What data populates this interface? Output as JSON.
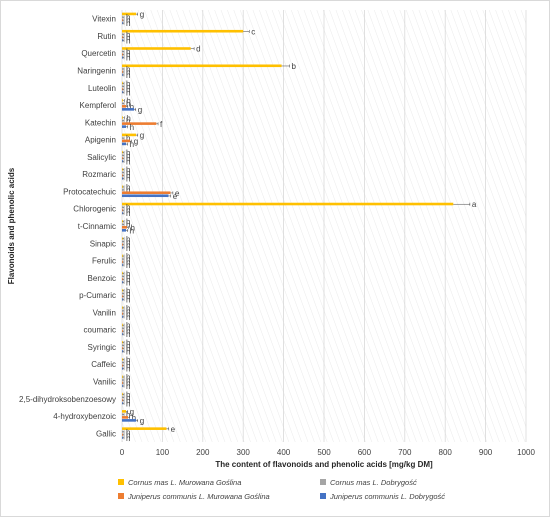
{
  "chart_data": {
    "type": "bar",
    "orientation": "horizontal",
    "xlabel": "The content of flavonoids and phenolic acids [mg/kg DM]",
    "ylabel": "Flavonoids and phenolic acids",
    "xlim": [
      0,
      1000
    ],
    "xticks": [
      "0",
      "100",
      "200",
      "300",
      "400",
      "500",
      "600",
      "700",
      "800",
      "900",
      "1000"
    ],
    "grid": "vertical",
    "legend_position": "bottom",
    "categories": [
      "Vitexin",
      "Rutin",
      "Quercetin",
      "Naringenin",
      "Luteolin",
      "Kempferol",
      "Katechin",
      "Apigenin",
      "Salicylic",
      "Rozmaric",
      "Protocatechuic",
      "Chlorogenic",
      "t-Cinnamic",
      "Sinapic",
      "Ferulic",
      "Benzoic",
      "p-Cumaric",
      "Vanilin",
      "coumaric",
      "Syringic",
      "Caffeic",
      "Vanilic",
      "2,5-dihydroksobenzoesowy",
      "4-hydroxybenzoic",
      "Gallic"
    ],
    "series": [
      {
        "name": "Cornus mas L. Murowana Goślina",
        "color": "#ffc000",
        "values": [
          35,
          300,
          170,
          395,
          1,
          2,
          2,
          35,
          1,
          1,
          1,
          820,
          1,
          1,
          1,
          1,
          1,
          1,
          1,
          1,
          1,
          1,
          1,
          10,
          110
        ],
        "letters": [
          "g",
          "c",
          "d",
          "b",
          "h",
          "h",
          "h",
          "g",
          "h",
          "h",
          "h",
          "a",
          "h",
          "h",
          "h",
          "h",
          "h",
          "h",
          "h",
          "h",
          "h",
          "h",
          "h",
          "g",
          "e"
        ]
      },
      {
        "name": "Cornus mas L. Dobrygość",
        "color": "#a5a5a5",
        "values": [
          1,
          1,
          1,
          1,
          1,
          1,
          1,
          1,
          1,
          1,
          1,
          1,
          1,
          1,
          1,
          1,
          1,
          1,
          1,
          1,
          1,
          1,
          1,
          1,
          1
        ],
        "letters": [
          "h",
          "h",
          "h",
          "h",
          "h",
          "h",
          "h",
          "h",
          "h",
          "h",
          "h",
          "h",
          "h",
          "h",
          "h",
          "h",
          "h",
          "h",
          "h",
          "h",
          "h",
          "h",
          "h",
          "h",
          "h"
        ]
      },
      {
        "name": "Juniperus communis L. Murowana Goślina",
        "color": "#ed7d31",
        "values": [
          1,
          1,
          1,
          1,
          1,
          10,
          85,
          20,
          1,
          1,
          120,
          1,
          12,
          1,
          1,
          1,
          1,
          1,
          1,
          1,
          1,
          1,
          1,
          15,
          1
        ],
        "letters": [
          "h",
          "h",
          "h",
          "h",
          "h",
          "h",
          "f",
          "g",
          "h",
          "h",
          "e",
          "h",
          "h",
          "h",
          "h",
          "h",
          "h",
          "h",
          "h",
          "h",
          "h",
          "h",
          "h",
          "h",
          "h"
        ]
      },
      {
        "name": "Juniperus communis L. Dobrygość",
        "color": "#4472c4",
        "values": [
          1,
          1,
          1,
          1,
          1,
          30,
          10,
          10,
          1,
          1,
          115,
          1,
          10,
          1,
          1,
          1,
          1,
          1,
          1,
          1,
          1,
          1,
          1,
          35,
          1
        ],
        "letters": [
          "h",
          "h",
          "h",
          "h",
          "h",
          "g",
          "h",
          "h",
          "h",
          "h",
          "e",
          "h",
          "h",
          "h",
          "h",
          "h",
          "h",
          "h",
          "h",
          "h",
          "h",
          "h",
          "h",
          "g",
          "h"
        ]
      }
    ]
  }
}
